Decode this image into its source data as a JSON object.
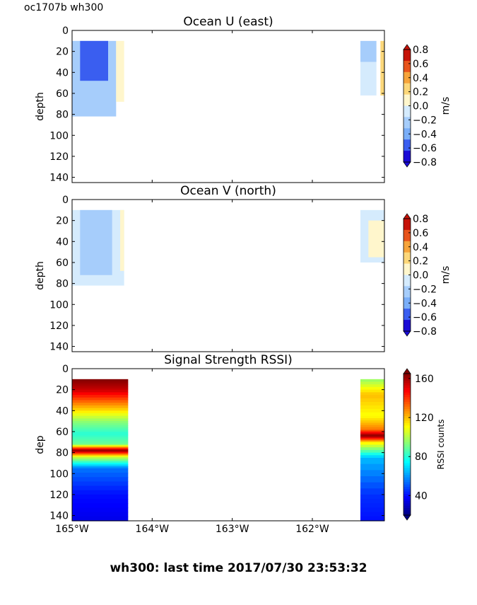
{
  "figure": {
    "corner_label": "oc1707b wh300",
    "footer": "wh300: last time 2017/07/30 23:53:32"
  },
  "colors": {
    "jet": [
      "#00007f",
      "#0000ff",
      "#007fff",
      "#00ffff",
      "#7fff7f",
      "#ffff00",
      "#ff7f00",
      "#ff0000",
      "#7f0000"
    ],
    "diverging": [
      "#1a0bd6",
      "#3a5ef0",
      "#7aaef8",
      "#a6cdfb",
      "#d5ebfd",
      "#fff6cc",
      "#fcd77a",
      "#f6a43b",
      "#e8541c",
      "#c61208"
    ]
  },
  "chart_data": [
    {
      "id": "u",
      "type": "heatmap",
      "title": "Ocean U (east)",
      "xlabel": "",
      "ylabel": "depth",
      "xlim": [
        -165.0,
        -161.1
      ],
      "ylim": [
        145,
        0
      ],
      "yticks": [
        "0",
        "20",
        "40",
        "60",
        "80",
        "100",
        "120",
        "140"
      ],
      "colorbar": {
        "label": "m/s",
        "ticks": [
          "0.8",
          "0.6",
          "0.4",
          "0.2",
          "0.0",
          "−0.2",
          "−0.4",
          "−0.6",
          "−0.8"
        ],
        "range": [
          -0.8,
          0.8
        ]
      },
      "regions": [
        {
          "lon": -165.0,
          "lon_end": -164.45,
          "depth_top": 10,
          "depth_bottom": 82,
          "value": -0.3
        },
        {
          "lon": -164.9,
          "lon_end": -164.55,
          "depth_top": 10,
          "depth_bottom": 48,
          "value": -0.5
        },
        {
          "lon": -164.45,
          "lon_end": -164.35,
          "depth_top": 10,
          "depth_bottom": 68,
          "value": 0.1
        },
        {
          "lon": -161.4,
          "lon_end": -161.2,
          "depth_top": 10,
          "depth_bottom": 30,
          "value": -0.3
        },
        {
          "lon": -161.4,
          "lon_end": -161.2,
          "depth_top": 30,
          "depth_bottom": 62,
          "value": -0.1
        },
        {
          "lon": -161.15,
          "lon_end": -161.1,
          "depth_top": 10,
          "depth_bottom": 62,
          "value": 0.3
        }
      ]
    },
    {
      "id": "v",
      "type": "heatmap",
      "title": "Ocean V (north)",
      "xlabel": "",
      "ylabel": "depth",
      "xlim": [
        -165.0,
        -161.1
      ],
      "ylim": [
        145,
        0
      ],
      "yticks": [
        "0",
        "20",
        "40",
        "60",
        "80",
        "100",
        "120",
        "140"
      ],
      "colorbar": {
        "label": "m/s",
        "ticks": [
          "0.8",
          "0.6",
          "0.4",
          "0.2",
          "0.0",
          "−0.2",
          "−0.4",
          "−0.6",
          "−0.8"
        ],
        "range": [
          -0.8,
          0.8
        ]
      },
      "regions": [
        {
          "lon": -165.0,
          "lon_end": -164.35,
          "depth_top": 10,
          "depth_bottom": 82,
          "value": -0.1
        },
        {
          "lon": -164.9,
          "lon_end": -164.5,
          "depth_top": 10,
          "depth_bottom": 72,
          "value": -0.3
        },
        {
          "lon": -164.4,
          "lon_end": -164.35,
          "depth_top": 10,
          "depth_bottom": 68,
          "value": 0.1
        },
        {
          "lon": -161.4,
          "lon_end": -161.1,
          "depth_top": 10,
          "depth_bottom": 60,
          "value": -0.1
        },
        {
          "lon": -161.3,
          "lon_end": -161.1,
          "depth_top": 20,
          "depth_bottom": 55,
          "value": 0.1
        }
      ]
    },
    {
      "id": "rssi",
      "type": "heatmap",
      "title": "Signal Strength RSSI)",
      "xlabel": "",
      "ylabel": "dep",
      "xlim": [
        -165.0,
        -161.1
      ],
      "ylim": [
        145,
        0
      ],
      "yticks": [
        "0",
        "20",
        "40",
        "60",
        "80",
        "100",
        "120",
        "140"
      ],
      "xticks": [
        "165°W",
        "164°W",
        "163°W",
        "162°W"
      ],
      "xtick_values": [
        -165,
        -164,
        -163,
        -162
      ],
      "colorbar": {
        "label": "RSSI counts",
        "ticks": [
          "160",
          "120",
          "80",
          "40"
        ],
        "range": [
          20,
          165
        ]
      },
      "blocks": [
        {
          "lon": -165.0,
          "lon_end": -164.3,
          "depth_top": 10,
          "depth_bottom": 145,
          "profile": [
            {
              "depth": 10,
              "value": 165
            },
            {
              "depth": 20,
              "value": 155
            },
            {
              "depth": 35,
              "value": 125
            },
            {
              "depth": 50,
              "value": 95
            },
            {
              "depth": 62,
              "value": 80
            },
            {
              "depth": 72,
              "value": 90
            },
            {
              "depth": 78,
              "value": 165
            },
            {
              "depth": 84,
              "value": 105
            },
            {
              "depth": 95,
              "value": 55
            },
            {
              "depth": 120,
              "value": 40
            },
            {
              "depth": 145,
              "value": 35
            }
          ]
        },
        {
          "lon": -161.4,
          "lon_end": -161.1,
          "depth_top": 10,
          "depth_bottom": 145,
          "profile": [
            {
              "depth": 10,
              "value": 95
            },
            {
              "depth": 25,
              "value": 120
            },
            {
              "depth": 45,
              "value": 110
            },
            {
              "depth": 58,
              "value": 130
            },
            {
              "depth": 64,
              "value": 165
            },
            {
              "depth": 70,
              "value": 115
            },
            {
              "depth": 85,
              "value": 65
            },
            {
              "depth": 120,
              "value": 45
            },
            {
              "depth": 145,
              "value": 40
            }
          ]
        }
      ]
    }
  ]
}
